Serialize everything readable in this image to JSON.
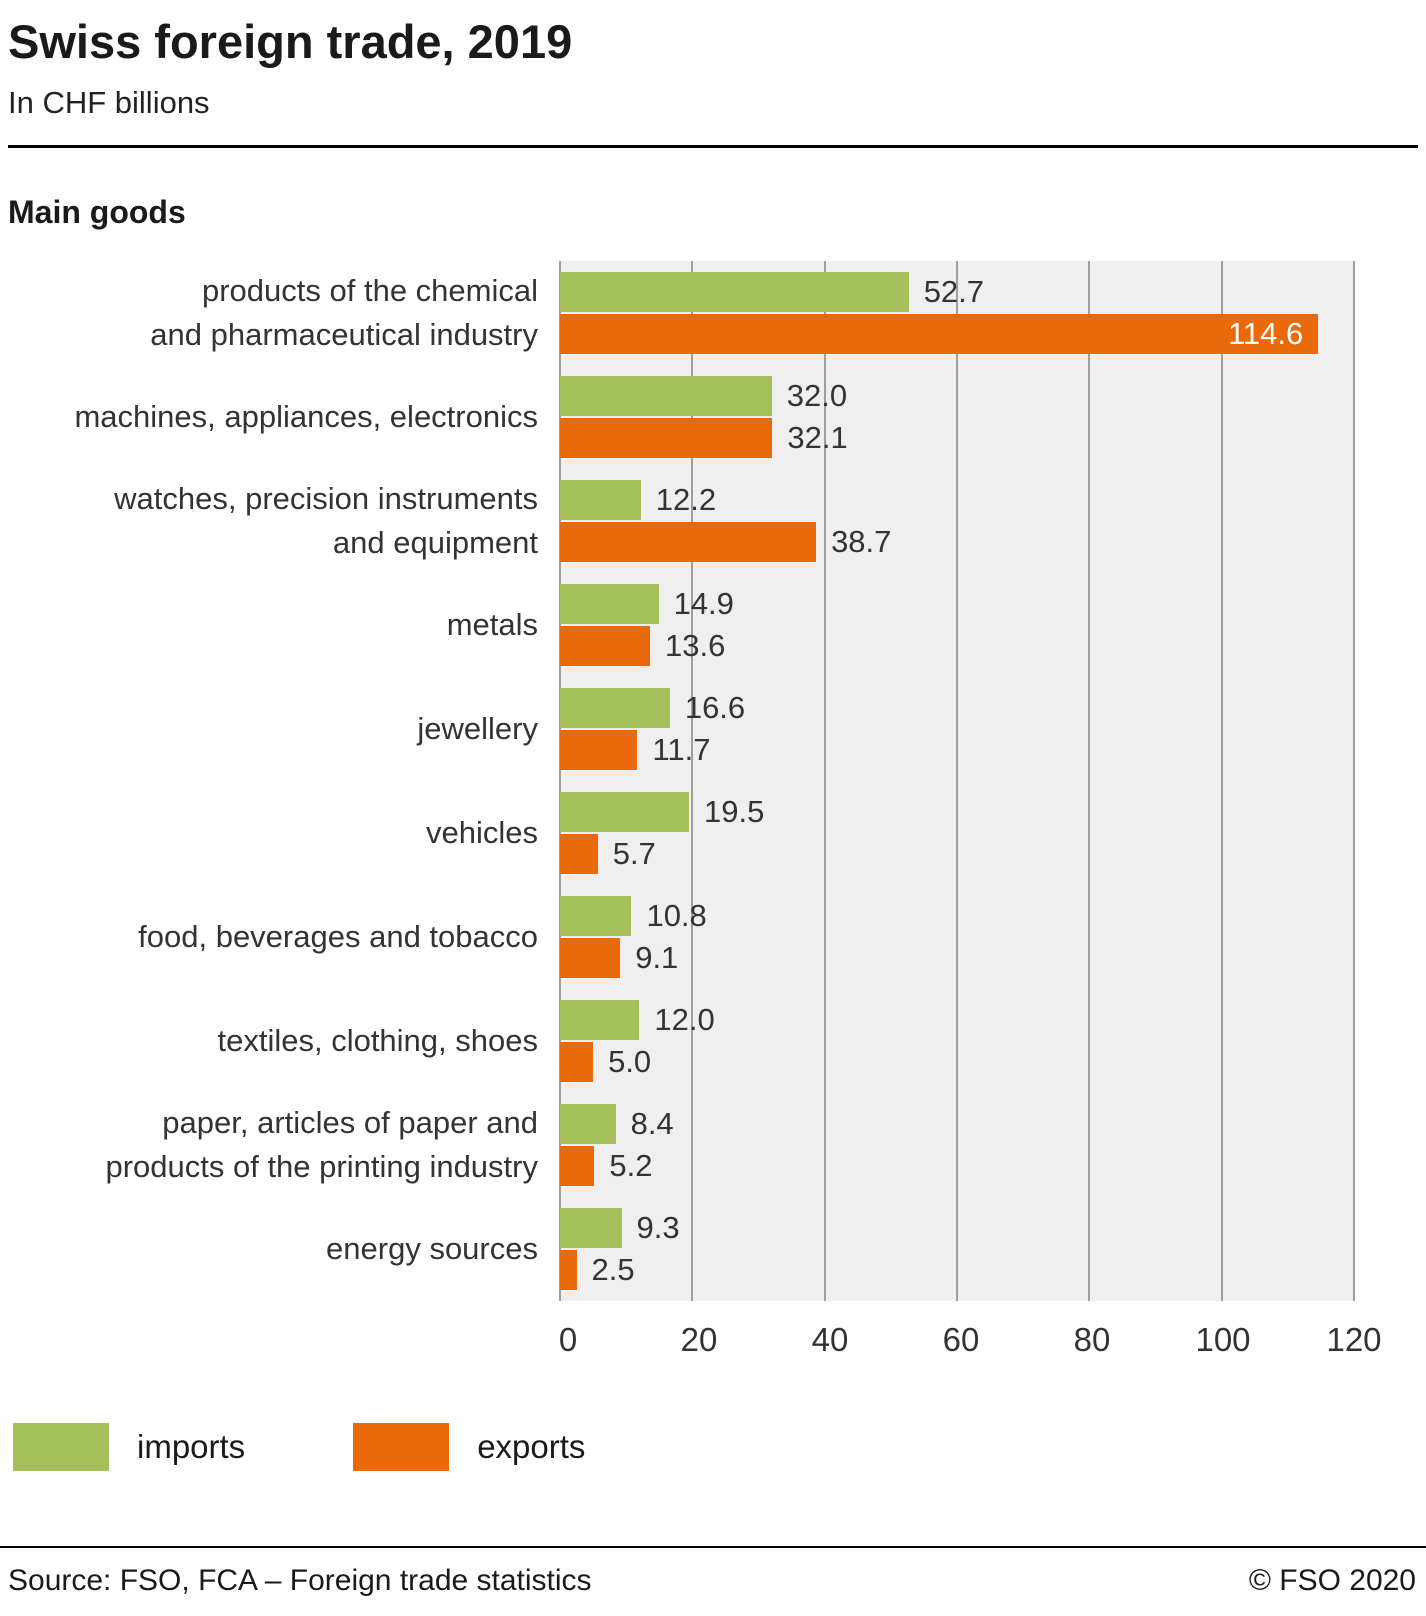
{
  "header": {
    "title": "Swiss foreign trade, 2019",
    "subtitle": "In CHF billions"
  },
  "chart_data": {
    "type": "bar",
    "orientation": "horizontal",
    "section_title": "Main goods",
    "categories": [
      "products of the chemical\nand pharmaceutical industry",
      "machines, appliances, electronics",
      "watches, precision instruments\nand equipment",
      "metals",
      "jewellery",
      "vehicles",
      "food, beverages and tobacco",
      "textiles, clothing, shoes",
      "paper, articles of paper and\nproducts of the printing industry",
      "energy sources"
    ],
    "series": [
      {
        "name": "imports",
        "color": "#a5c05a",
        "values": [
          52.7,
          32.0,
          12.2,
          14.9,
          16.6,
          19.5,
          10.8,
          12.0,
          8.4,
          9.3
        ]
      },
      {
        "name": "exports",
        "color": "#ea690b",
        "values": [
          114.6,
          32.1,
          38.7,
          13.6,
          11.7,
          5.7,
          9.1,
          5.0,
          5.2,
          2.5
        ]
      }
    ],
    "xlim": [
      0,
      120
    ],
    "x_ticks": [
      0,
      20,
      40,
      60,
      80,
      100,
      120
    ],
    "grid": "vertical",
    "legend_position": "bottom",
    "plot_background": "#efefef"
  },
  "footer": {
    "source": "Source: FSO, FCA – Foreign trade statistics",
    "copyright": "© FSO 2020"
  }
}
